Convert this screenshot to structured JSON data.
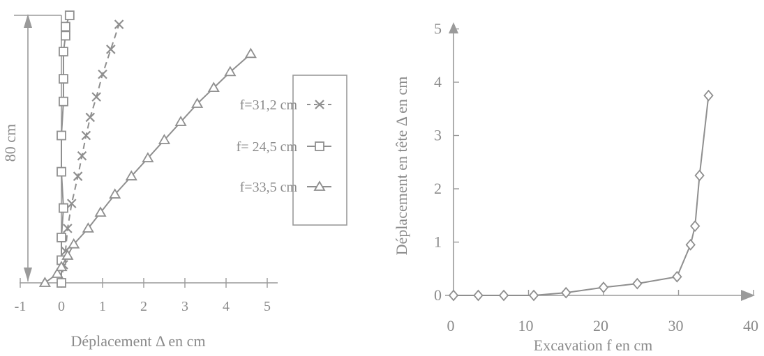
{
  "chart_data": [
    {
      "type": "line",
      "xlabel": "Déplacement Δ en cm",
      "ylabel": "80 cm",
      "xlim": [
        -1,
        5
      ],
      "xticks": [
        "-1",
        "0",
        "1",
        "2",
        "3",
        "4",
        "5"
      ],
      "legend_position": "right",
      "series": [
        {
          "name": "f=31,2 cm",
          "marker": "x",
          "style": "dashed",
          "points": [
            [
              0.0,
              0
            ],
            [
              0.05,
              8
            ],
            [
              0.1,
              14
            ],
            [
              0.15,
              24
            ],
            [
              0.25,
              35
            ],
            [
              0.4,
              47
            ],
            [
              0.5,
              56
            ],
            [
              0.6,
              65
            ],
            [
              0.7,
              73
            ],
            [
              0.85,
              82
            ],
            [
              1.0,
              92
            ],
            [
              1.2,
              103
            ],
            [
              1.4,
              114
            ]
          ]
        },
        {
          "name": "f= 24,5 cm",
          "marker": "square",
          "style": "solid",
          "points": [
            [
              0.0,
              0
            ],
            [
              0.0,
              10
            ],
            [
              0.0,
              20
            ],
            [
              0.05,
              33
            ],
            [
              0.0,
              49
            ],
            [
              0.0,
              65
            ],
            [
              0.05,
              80
            ],
            [
              0.05,
              90
            ],
            [
              0.05,
              102
            ],
            [
              0.1,
              109
            ],
            [
              0.1,
              113
            ],
            [
              0.2,
              118
            ]
          ]
        },
        {
          "name": "f=33,5 cm",
          "marker": "triangle",
          "style": "solid",
          "points": [
            [
              -0.4,
              0
            ],
            [
              -0.1,
              4
            ],
            [
              0.0,
              7
            ],
            [
              0.15,
              12
            ],
            [
              0.3,
              17
            ],
            [
              0.65,
              24
            ],
            [
              0.95,
              31
            ],
            [
              1.3,
              39
            ],
            [
              1.7,
              47
            ],
            [
              2.1,
              55
            ],
            [
              2.5,
              63
            ],
            [
              2.9,
              71
            ],
            [
              3.3,
              79
            ],
            [
              3.7,
              86
            ],
            [
              4.1,
              93
            ],
            [
              4.6,
              101
            ]
          ]
        }
      ]
    },
    {
      "type": "line",
      "xlabel": "Excavation f en cm",
      "ylabel": "Déplacement en tête Δ en cm",
      "xlim": [
        0,
        40
      ],
      "ylim": [
        0,
        5
      ],
      "xticks": [
        "0",
        "10",
        "20",
        "30",
        "40"
      ],
      "yticks": [
        "0",
        "1",
        "2",
        "3",
        "4",
        "5"
      ],
      "series": [
        {
          "marker": "diamond",
          "x": [
            0,
            3.3,
            6.7,
            10.7,
            15,
            20,
            24.5,
            29.8,
            31.6,
            32.2,
            32.8,
            34
          ],
          "y": [
            0,
            0,
            0,
            0,
            0.05,
            0.15,
            0.22,
            0.35,
            0.95,
            1.3,
            2.25,
            3.75
          ]
        }
      ]
    }
  ]
}
